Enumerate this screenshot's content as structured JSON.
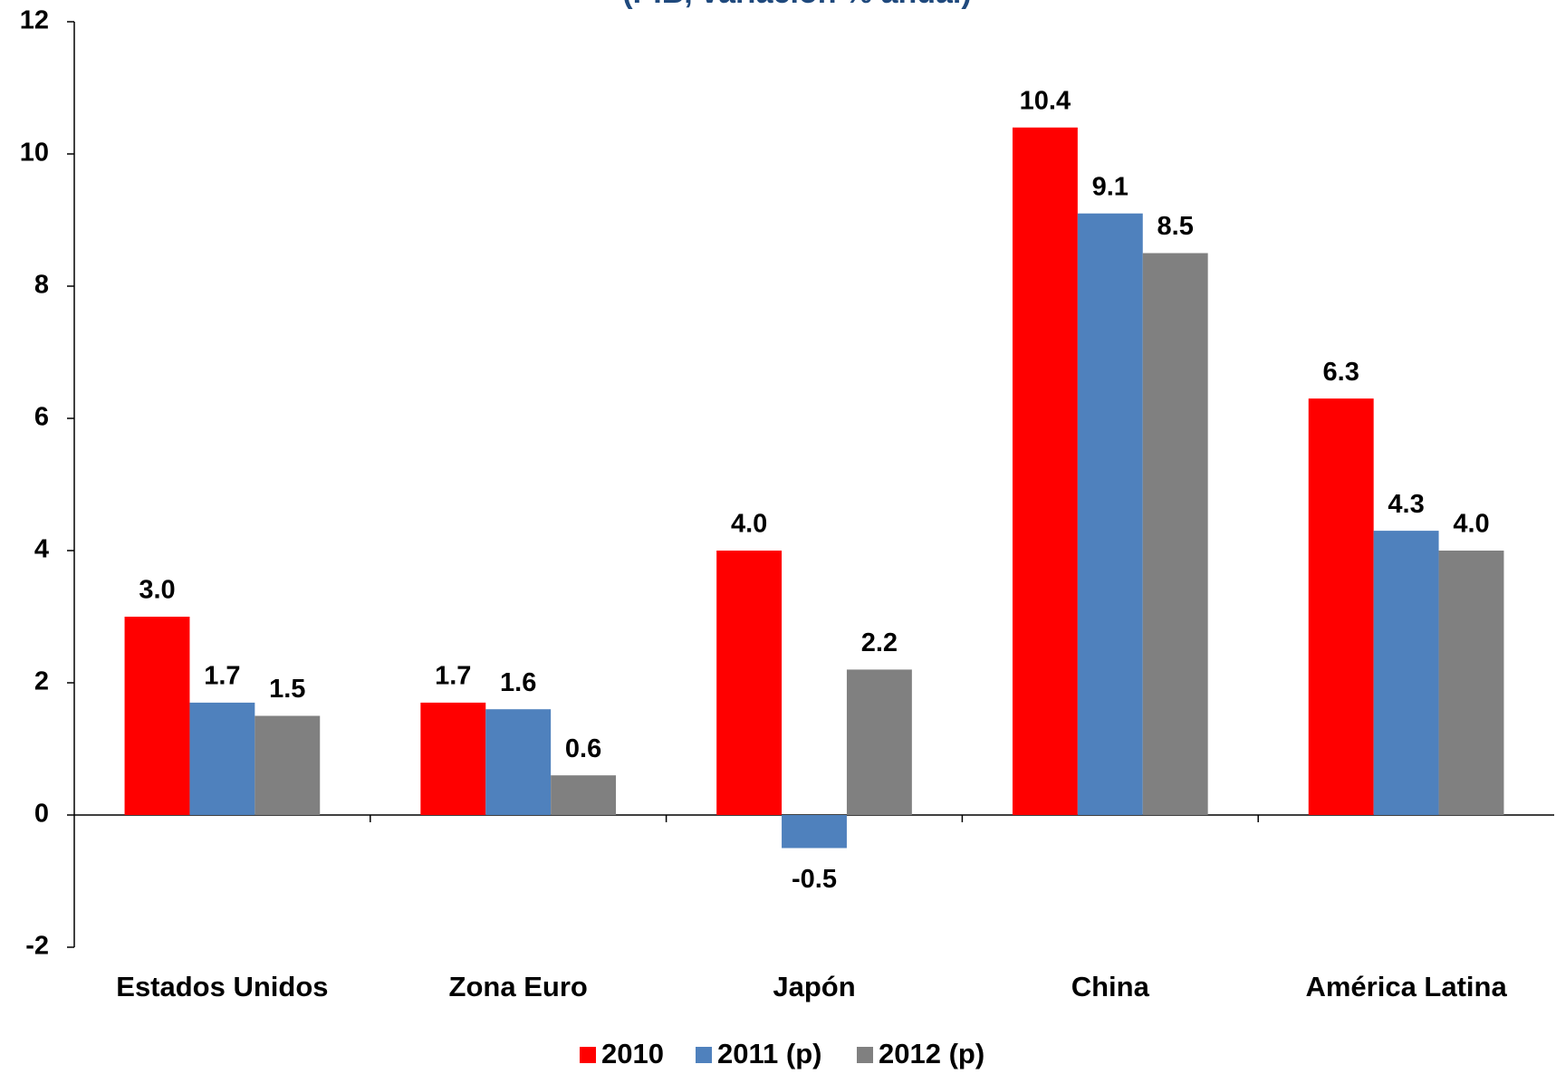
{
  "chart_data": {
    "type": "bar",
    "subtitle": "(PIB, variación % anual)",
    "categories": [
      "Estados Unidos",
      "Zona Euro",
      "Japón",
      "China",
      "América Latina"
    ],
    "series": [
      {
        "name": "2010",
        "color": "#ff0000",
        "values": [
          3.0,
          1.7,
          4.0,
          10.4,
          6.3
        ],
        "value_labels": [
          "3.0",
          "1.7",
          "4.0",
          "10.4",
          "6.3"
        ]
      },
      {
        "name": "2011 (p)",
        "color": "#4f81bd",
        "values": [
          1.7,
          1.6,
          -0.5,
          9.1,
          4.3
        ],
        "value_labels": [
          "1.7",
          "1.6",
          "-0.5",
          "9.1",
          "4.3"
        ]
      },
      {
        "name": "2012 (p)",
        "color": "#808080",
        "values": [
          1.5,
          0.6,
          2.2,
          8.5,
          4.0
        ],
        "value_labels": [
          "1.5",
          "0.6",
          "2.2",
          "8.5",
          "4.0"
        ]
      }
    ],
    "ylim": [
      -2,
      12
    ],
    "yticks": [
      -2,
      0,
      2,
      4,
      6,
      8,
      10,
      12
    ],
    "grid": false,
    "legend": "bottom"
  }
}
